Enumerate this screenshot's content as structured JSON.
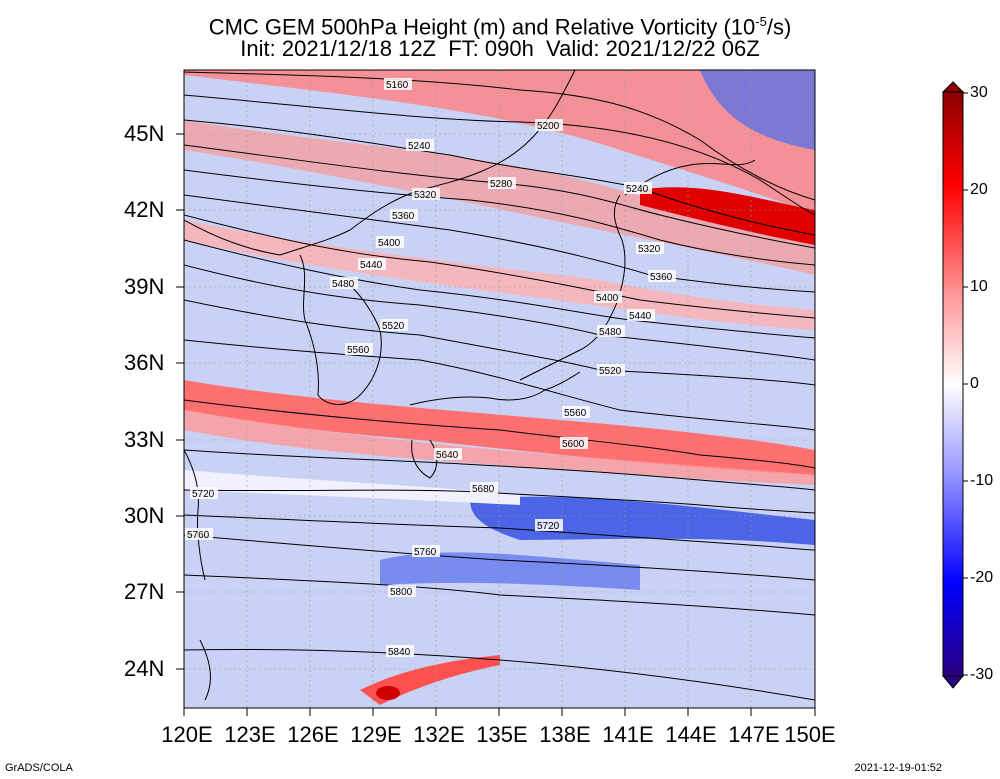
{
  "title": {
    "line1": "CMC GEM 500hPa Height (m) and Relative Vorticity (10",
    "line1_sup": "-5",
    "line1_end": "/s)",
    "line2": "Init: 2021/12/18 12Z  FT: 090h  Valid: 2021/12/22 06Z"
  },
  "lat_labels": [
    "45N",
    "42N",
    "39N",
    "36N",
    "33N",
    "30N",
    "27N",
    "24N"
  ],
  "lon_labels": [
    "120E",
    "123E",
    "126E",
    "129E",
    "132E",
    "135E",
    "138E",
    "141E",
    "144E",
    "147E",
    "150E"
  ],
  "colorbar": {
    "labels": [
      "30",
      "20",
      "10",
      "0",
      "-10",
      "-20",
      "-30"
    ],
    "colors": [
      "#ff0000",
      "#ffffff",
      "#0000ff"
    ]
  },
  "contour_labels": [
    "5160",
    "5200",
    "5240",
    "5280",
    "5320",
    "5240",
    "5360",
    "5320",
    "5400",
    "5360",
    "5440",
    "5400",
    "5480",
    "5440",
    "5520",
    "5480",
    "5560",
    "5520",
    "5560",
    "5600",
    "5640",
    "5680",
    "5720",
    "5720",
    "5760",
    "5760",
    "5800",
    "5840"
  ],
  "footer": {
    "left": "GrADS/COLA",
    "right": "2021-12-19-01:52"
  }
}
